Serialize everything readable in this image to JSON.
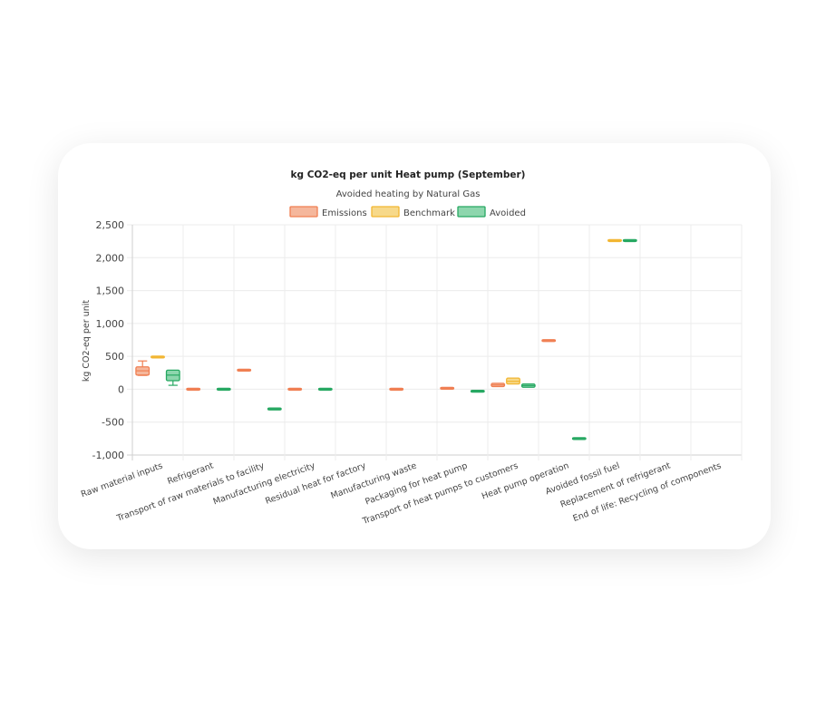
{
  "chart_data": {
    "type": "box",
    "title": "kg CO2-eq per unit Heat pump (September)",
    "subtitle": "Avoided heating by Natural Gas",
    "ylabel": "kg CO2-eq per unit",
    "xlabel": "",
    "ylim": [
      -1000,
      2500
    ],
    "yticks": [
      2500,
      2000,
      1500,
      1000,
      500,
      0,
      -500,
      -1000
    ],
    "ytick_labels": [
      "2,500",
      "2,000",
      "1,500",
      "1,000",
      "500",
      "0",
      "-500",
      "-1,000"
    ],
    "grid": true,
    "legend_position": "top",
    "categories": [
      "Raw material inputs",
      "Refrigerant",
      "Transport of raw materials to facility",
      "Manufacturing electricity",
      "Residual heat for factory",
      "Manufacturing waste",
      "Packaging for heat pump",
      "Transport of heat pumps to customers",
      "Heat pump operation",
      "Avoided fossil fuel",
      "Replacement of refrigerant",
      "End of life: Recycling of components"
    ],
    "series": [
      {
        "name": "Emissions",
        "color": "#f07f52",
        "fill": "#f5b79c",
        "boxes": [
          {
            "category": 0,
            "min": 210,
            "q1": 215,
            "median": 280,
            "q3": 340,
            "max": 430
          },
          {
            "category": 1,
            "min": 0,
            "q1": 0,
            "median": 0,
            "q3": 0,
            "max": 0
          },
          {
            "category": 2,
            "min": 290,
            "q1": 290,
            "median": 290,
            "q3": 290,
            "max": 290
          },
          {
            "category": 3,
            "min": 0,
            "q1": 0,
            "median": 0,
            "q3": 0,
            "max": 0
          },
          {
            "category": 5,
            "min": 0,
            "q1": 0,
            "median": 0,
            "q3": 0,
            "max": 0
          },
          {
            "category": 6,
            "min": 15,
            "q1": 15,
            "median": 15,
            "q3": 15,
            "max": 15
          },
          {
            "category": 7,
            "min": 40,
            "q1": 40,
            "median": 65,
            "q3": 90,
            "max": 90
          },
          {
            "category": 8,
            "min": 740,
            "q1": 740,
            "median": 740,
            "q3": 740,
            "max": 740
          }
        ]
      },
      {
        "name": "Benchmark",
        "color": "#f2b632",
        "fill": "#f7d98a",
        "boxes": [
          {
            "category": 0,
            "min": 490,
            "q1": 490,
            "median": 490,
            "q3": 490,
            "max": 490
          },
          {
            "category": 7,
            "min": 80,
            "q1": 80,
            "median": 120,
            "q3": 170,
            "max": 170
          },
          {
            "category": 9,
            "min": 2260,
            "q1": 2260,
            "median": 2260,
            "q3": 2260,
            "max": 2260
          }
        ]
      },
      {
        "name": "Avoided",
        "color": "#27a862",
        "fill": "#8dd6ad",
        "boxes": [
          {
            "category": 0,
            "min": 60,
            "q1": 130,
            "median": 215,
            "q3": 290,
            "max": 290
          },
          {
            "category": 1,
            "min": 0,
            "q1": 0,
            "median": 0,
            "q3": 0,
            "max": 0
          },
          {
            "category": 2,
            "min": -300,
            "q1": -300,
            "median": -300,
            "q3": -300,
            "max": -300
          },
          {
            "category": 3,
            "min": 0,
            "q1": 0,
            "median": 0,
            "q3": 0,
            "max": 0
          },
          {
            "category": 6,
            "min": -30,
            "q1": -30,
            "median": -30,
            "q3": -30,
            "max": -30
          },
          {
            "category": 7,
            "min": 30,
            "q1": 30,
            "median": 55,
            "q3": 80,
            "max": 80
          },
          {
            "category": 8,
            "min": -750,
            "q1": -750,
            "median": -750,
            "q3": -750,
            "max": -750
          },
          {
            "category": 9,
            "min": 2260,
            "q1": 2260,
            "median": 2260,
            "q3": 2260,
            "max": 2260
          }
        ]
      }
    ]
  }
}
